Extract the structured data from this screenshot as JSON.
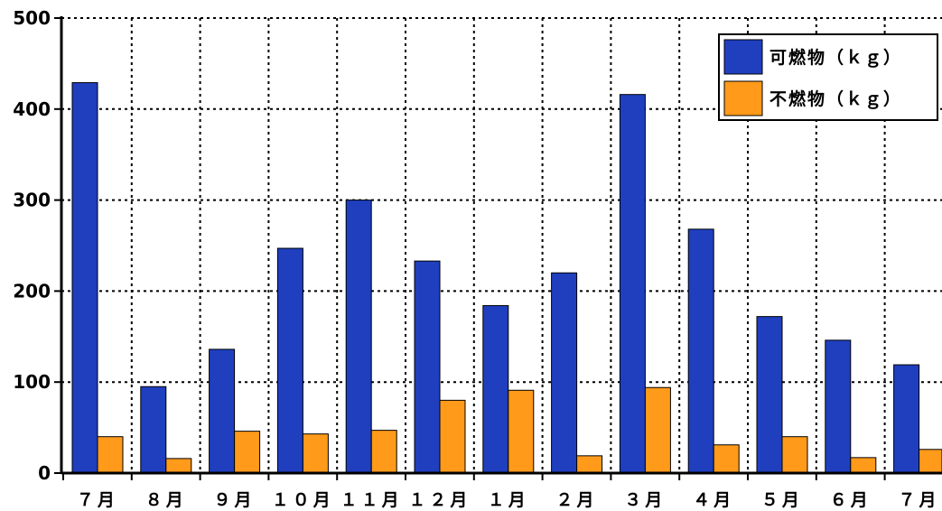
{
  "chart_data": {
    "type": "bar",
    "categories": [
      "７月",
      "８月",
      "９月",
      "１０月",
      "１１月",
      "１２月",
      "１月",
      "２月",
      "３月",
      "４月",
      "５月",
      "６月",
      "７月"
    ],
    "series": [
      {
        "name": "可燃物（ｋｇ）",
        "color": "#1f3fbf",
        "values": [
          429,
          95,
          136,
          247,
          300,
          233,
          184,
          220,
          416,
          268,
          172,
          146,
          119
        ]
      },
      {
        "name": "不燃物（ｋｇ）",
        "color": "#ff9a1a",
        "values": [
          40,
          16,
          46,
          43,
          47,
          80,
          91,
          19,
          94,
          31,
          40,
          17,
          26
        ]
      }
    ],
    "yticks": [
      "0",
      "100",
      "200",
      "300",
      "400",
      "500"
    ],
    "ylim": [
      0,
      500
    ],
    "grid": true,
    "legend_position": "top-right",
    "title": "",
    "xlabel": "",
    "ylabel": ""
  }
}
